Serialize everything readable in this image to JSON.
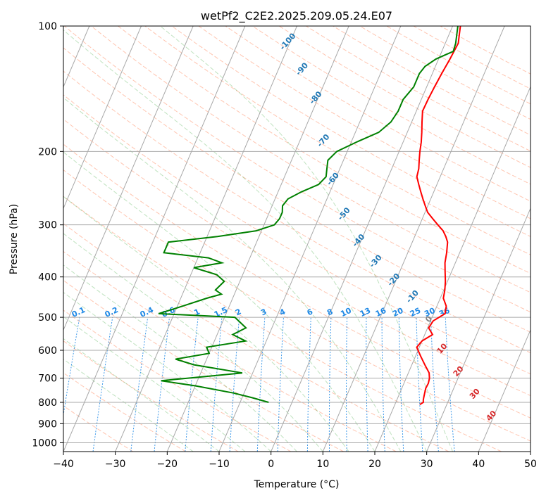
{
  "chart_data": {
    "type": "line",
    "chart_kind": "skew-T log-P diagram",
    "title": "wetPf2_C2E2.2025.209.05.24.E07",
    "xlabel": "Temperature (°C)",
    "ylabel": "Pressure (hPa)",
    "xlim": [
      -40,
      50
    ],
    "ylim": [
      1050,
      100
    ],
    "y_scale": "log",
    "x_ticks": [
      -40,
      -30,
      -20,
      -10,
      0,
      10,
      20,
      30,
      40,
      50
    ],
    "y_ticks": [
      100,
      200,
      300,
      400,
      500,
      600,
      700,
      800,
      900,
      1000
    ],
    "grid": true,
    "series": [
      {
        "color": "#ff0000",
        "points": [
          [
            1.5,
            100
          ],
          [
            2,
            105
          ],
          [
            2.5,
            110
          ],
          [
            2.2,
            120
          ],
          [
            1.8,
            130
          ],
          [
            1.5,
            140
          ],
          [
            1.3,
            150
          ],
          [
            1.2,
            160
          ],
          [
            2,
            170
          ],
          [
            2.8,
            180
          ],
          [
            3.5,
            190
          ],
          [
            4,
            200
          ],
          [
            4.6,
            210
          ],
          [
            5.2,
            220
          ],
          [
            5.5,
            230
          ],
          [
            6.5,
            240
          ],
          [
            7.5,
            250
          ],
          [
            8.5,
            260
          ],
          [
            9.5,
            270
          ],
          [
            10.5,
            280
          ],
          [
            12,
            290
          ],
          [
            13.5,
            300
          ],
          [
            15,
            310
          ],
          [
            16,
            320
          ],
          [
            16.8,
            330
          ],
          [
            17.5,
            350
          ],
          [
            18,
            370
          ],
          [
            18.8,
            390
          ],
          [
            19.6,
            410
          ],
          [
            20.2,
            430
          ],
          [
            20.6,
            450
          ],
          [
            21.8,
            470
          ],
          [
            22.2,
            490
          ],
          [
            20.5,
            510
          ],
          [
            20.2,
            530
          ],
          [
            21.5,
            550
          ],
          [
            20,
            570
          ],
          [
            19.5,
            590
          ],
          [
            21,
            620
          ],
          [
            22.5,
            650
          ],
          [
            24,
            680
          ],
          [
            24.5,
            700
          ],
          [
            24.7,
            720
          ],
          [
            24.6,
            740
          ],
          [
            24.8,
            760
          ],
          [
            25,
            780
          ],
          [
            25.1,
            790
          ],
          [
            25.3,
            800
          ],
          [
            24.8,
            810
          ]
        ]
      },
      {
        "color": "#008000",
        "points": [
          [
            1,
            100
          ],
          [
            2,
            110
          ],
          [
            2.2,
            115
          ],
          [
            -0.5,
            120
          ],
          [
            -2,
            125
          ],
          [
            -2.5,
            130
          ],
          [
            -2.5,
            140
          ],
          [
            -3.5,
            150
          ],
          [
            -3.5,
            160
          ],
          [
            -4,
            170
          ],
          [
            -5.5,
            180
          ],
          [
            -9,
            190
          ],
          [
            -12,
            200
          ],
          [
            -13,
            210
          ],
          [
            -12.5,
            220
          ],
          [
            -12,
            230
          ],
          [
            -12.8,
            240
          ],
          [
            -15.5,
            250
          ],
          [
            -17.5,
            260
          ],
          [
            -18,
            270
          ],
          [
            -17.5,
            280
          ],
          [
            -17.5,
            290
          ],
          [
            -18,
            300
          ],
          [
            -21,
            310
          ],
          [
            -28,
            320
          ],
          [
            -37,
            330
          ],
          [
            -37,
            350
          ],
          [
            -28,
            360
          ],
          [
            -25,
            370
          ],
          [
            -30,
            380
          ],
          [
            -25,
            395
          ],
          [
            -23,
            410
          ],
          [
            -24,
            430
          ],
          [
            -22.5,
            440
          ],
          [
            -25,
            450
          ],
          [
            -29,
            470
          ],
          [
            -33,
            490
          ],
          [
            -18,
            500
          ],
          [
            -15,
            530
          ],
          [
            -17,
            550
          ],
          [
            -14,
            570
          ],
          [
            -21,
            590
          ],
          [
            -20,
            610
          ],
          [
            -26,
            630
          ],
          [
            -22,
            650
          ],
          [
            -12,
            680
          ],
          [
            -27,
            710
          ],
          [
            -20,
            730
          ],
          [
            -12,
            760
          ],
          [
            -8,
            780
          ],
          [
            -4.5,
            800
          ]
        ]
      }
    ],
    "dry_adiabat_labels": [
      "-100",
      "-90",
      "-80",
      "-70",
      "-60",
      "-50",
      "-40",
      "-30",
      "-20",
      "-10",
      "0",
      "10",
      "20",
      "30",
      "40"
    ],
    "mixing_ratio_labels": [
      "0.1",
      "0.2",
      "0.4",
      "0.6",
      "1",
      "1.5",
      "2",
      "3",
      "4",
      "6",
      "8",
      "10",
      "13",
      "16",
      "20",
      "25",
      "30",
      "36"
    ],
    "colors": {
      "temperature": "#ff0000",
      "dewpoint": "#008000",
      "dry_adiabat": "#ff7f50",
      "moist_adiabat": "#2ca02c",
      "mixing_ratio": "#1e88e5",
      "label_cold": "#1f77b4",
      "label_warm": "#d62728",
      "label_zero": "#808080"
    }
  }
}
